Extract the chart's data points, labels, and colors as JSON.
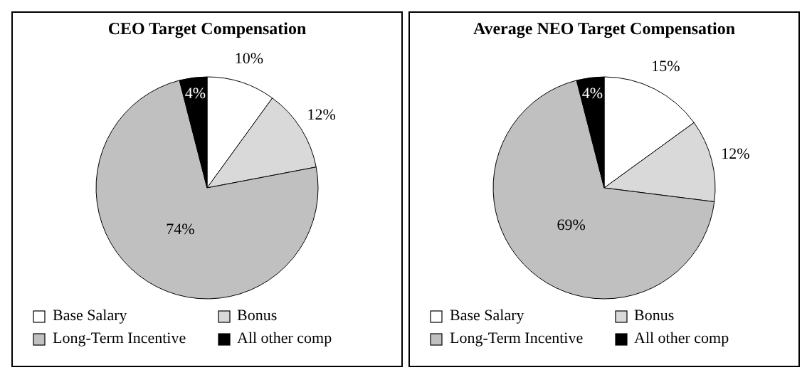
{
  "chart_data": [
    {
      "type": "pie",
      "title": "CEO Target Compensation",
      "categories": [
        "Base Salary",
        "Bonus",
        "Long-Term Incentive",
        "All other comp"
      ],
      "values": [
        10,
        12,
        74,
        4
      ],
      "value_labels": [
        "10%",
        "12%",
        "74%",
        "4%"
      ],
      "colors": [
        "#ffffff",
        "#d9d9d9",
        "#c0c0c0",
        "#000000"
      ],
      "legend": "bottom"
    },
    {
      "type": "pie",
      "title": "Average NEO Target Compensation",
      "categories": [
        "Base Salary",
        "Bonus",
        "Long-Term Incentive",
        "All other comp"
      ],
      "values": [
        15,
        12,
        69,
        4
      ],
      "value_labels": [
        "15%",
        "12%",
        "69%",
        "4%"
      ],
      "colors": [
        "#ffffff",
        "#d9d9d9",
        "#c0c0c0",
        "#000000"
      ],
      "legend": "bottom"
    }
  ]
}
